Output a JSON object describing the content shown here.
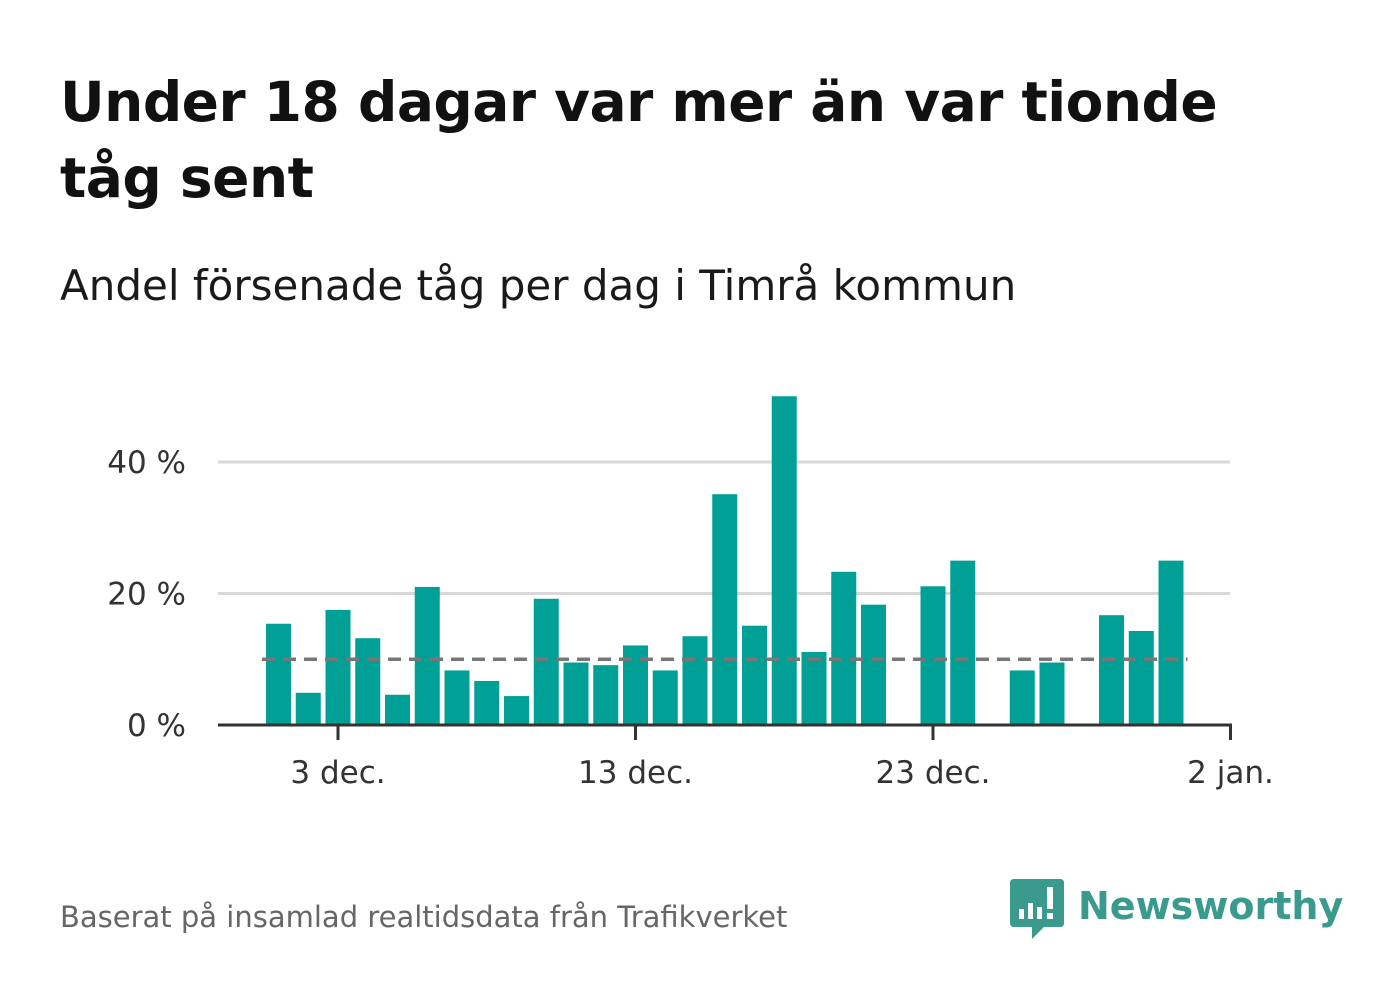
{
  "headline": "Under 18 dagar var mer än var tionde tåg sent",
  "subtitle": "Andel försenade tåg per dag i Timrå kommun",
  "source": "Baserat på insamlad realtidsdata från Trafikverket",
  "brand": {
    "name": "Newsworthy",
    "icon": "newsworthy-logo-icon",
    "color": "#3a9a8e"
  },
  "colors": {
    "bar": "#00a096",
    "grid": "#d9d9d9",
    "axis": "#333333",
    "reference_line": "#777777"
  },
  "chart_data": {
    "type": "bar",
    "x": [
      "2020-12-01",
      "2020-12-02",
      "2020-12-03",
      "2020-12-04",
      "2020-12-05",
      "2020-12-06",
      "2020-12-07",
      "2020-12-08",
      "2020-12-09",
      "2020-12-10",
      "2020-12-11",
      "2020-12-12",
      "2020-12-13",
      "2020-12-14",
      "2020-12-15",
      "2020-12-16",
      "2020-12-17",
      "2020-12-18",
      "2020-12-19",
      "2020-12-20",
      "2020-12-21",
      "2020-12-22",
      "2020-12-23",
      "2020-12-24",
      "2020-12-25",
      "2020-12-26",
      "2020-12-27",
      "2020-12-28",
      "2020-12-29",
      "2020-12-30",
      "2020-12-31"
    ],
    "values": [
      15.4,
      4.9,
      17.5,
      13.2,
      4.6,
      21.0,
      8.3,
      6.7,
      4.4,
      19.2,
      9.5,
      9.1,
      12.1,
      8.3,
      13.5,
      35.1,
      15.1,
      50.0,
      11.1,
      23.3,
      18.3,
      null,
      21.1,
      25.0,
      null,
      8.3,
      9.5,
      null,
      16.7,
      14.3,
      25.0
    ],
    "reference_line": 10,
    "x_ticks": [
      {
        "x": "2020-12-03",
        "label": "3 dec."
      },
      {
        "x": "2020-12-13",
        "label": "13 dec."
      },
      {
        "x": "2020-12-23",
        "label": "23 dec."
      },
      {
        "x": "2021-01-02",
        "label": "2 jan."
      }
    ],
    "y_ticks": [
      {
        "value": 0,
        "label": "0 %"
      },
      {
        "value": 20,
        "label": "20 %"
      },
      {
        "value": 40,
        "label": "40 %"
      }
    ],
    "ylim": [
      0,
      52
    ],
    "xlabel": "",
    "ylabel": "",
    "grid": "horizontal"
  }
}
